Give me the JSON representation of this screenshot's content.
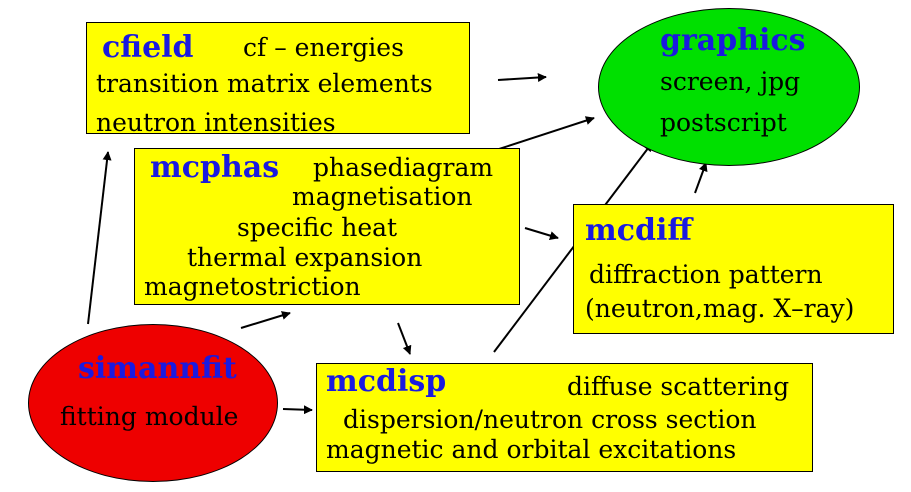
{
  "colors": {
    "box_fill": "#ffff00",
    "graphics_fill": "#00e000",
    "simannfit_fill": "#ee0000",
    "title_text": "#1a1ae0",
    "body_text": "#000000",
    "arrow": "#000000"
  },
  "nodes": {
    "cfield": {
      "title": "cfield",
      "lines": [
        "cf – energies",
        "transition matrix elements",
        "neutron intensities"
      ]
    },
    "graphics": {
      "title": "graphics",
      "lines": [
        "screen, jpg",
        "postscript"
      ]
    },
    "mcphas": {
      "title": "mcphas",
      "lines": [
        "phasediagram",
        "magnetisation",
        "specific heat",
        "thermal expansion",
        "magnetostriction"
      ]
    },
    "mcdiff": {
      "title": "mcdiff",
      "lines": [
        "diffraction pattern",
        "(neutron,mag. X–ray)"
      ]
    },
    "simannfit": {
      "title": "simannfit",
      "lines": [
        "fitting module"
      ]
    },
    "mcdisp": {
      "title": "mcdisp",
      "lines": [
        "diffuse scattering",
        "dispersion/neutron cross section",
        "magnetic and orbital excitations"
      ]
    }
  },
  "edges": [
    {
      "from": "cfield",
      "to": "graphics"
    },
    {
      "from": "mcphas",
      "to": "graphics"
    },
    {
      "from": "mcphas",
      "to": "mcdiff"
    },
    {
      "from": "mcphas",
      "to": "mcdisp"
    },
    {
      "from": "mcdiff",
      "to": "graphics"
    },
    {
      "from": "mcdisp",
      "to": "graphics"
    },
    {
      "from": "simannfit",
      "to": "cfield"
    },
    {
      "from": "simannfit",
      "to": "mcphas"
    },
    {
      "from": "simannfit",
      "to": "mcdisp"
    }
  ]
}
